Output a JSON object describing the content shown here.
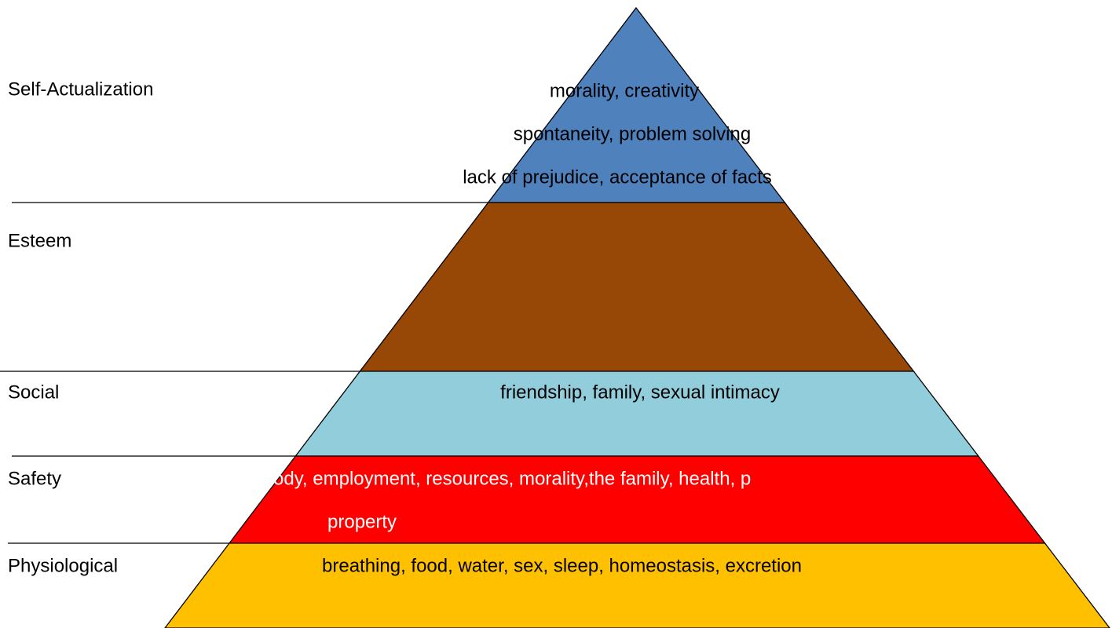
{
  "levels": [
    {
      "name": "Self-Actualization",
      "color": "#4f81bd",
      "lines": [
        "morality, creativity",
        "spontaneity, problem solving",
        "lack of prejudice, acceptance of facts"
      ],
      "text_color": "#000000"
    },
    {
      "name": "Esteem",
      "color": "#974706",
      "lines": [],
      "text_color": "#000000"
    },
    {
      "name": "Social",
      "color": "#92cddc",
      "lines": [
        "friendship, family, sexual intimacy"
      ],
      "text_color": "#000000"
    },
    {
      "name": "Safety",
      "color": "#ff0000",
      "lines": [
        "ody, employment, resources, morality,the family, health, p",
        "property"
      ],
      "text_color": "#ffffff"
    },
    {
      "name": "Physiological",
      "color": "#ffc000",
      "lines": [
        "breathing, food, water, sex, sleep, homeostasis, excretion"
      ],
      "text_color": "#000000"
    }
  ]
}
